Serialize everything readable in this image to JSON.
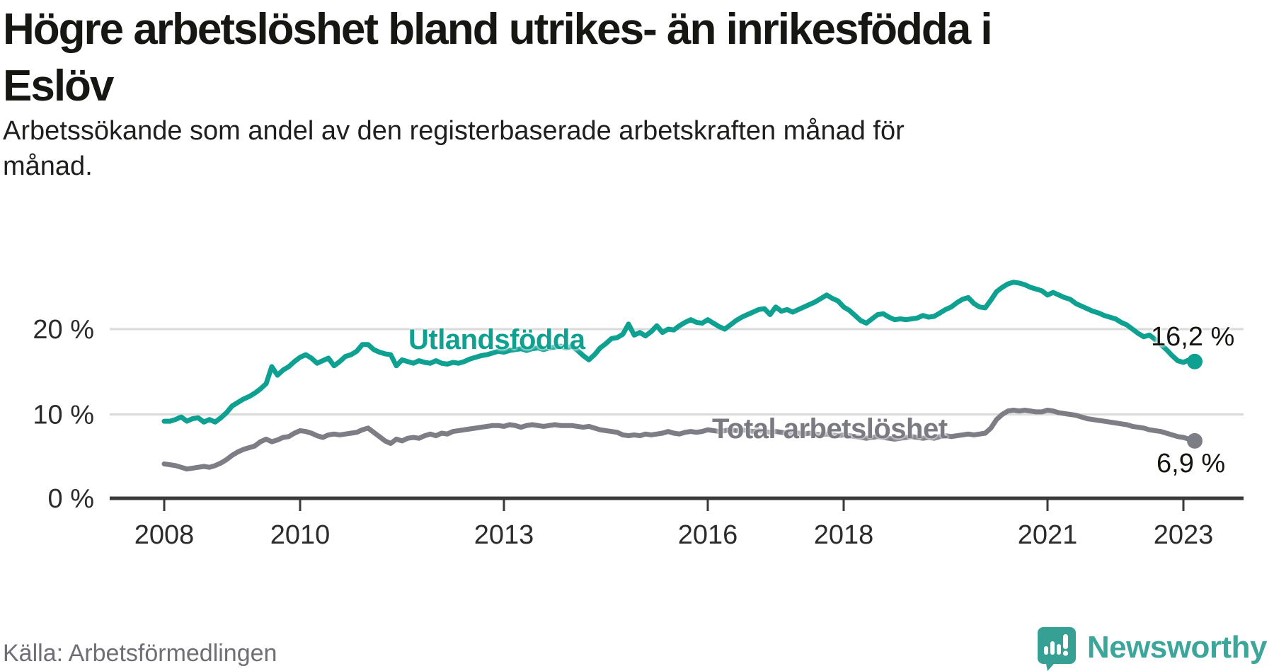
{
  "title": {
    "line1": "Högre arbetslöshet bland utrikes- än inrikesfödda i",
    "line2": "Eslöv"
  },
  "subtitle": {
    "line1": "Arbetssökande som andel av den registerbaserade arbetskraften månad för",
    "line2": "månad."
  },
  "source": "Källa: Arbetsförmedlingen",
  "brand": {
    "name": "Newsworthy"
  },
  "colors": {
    "teal": "#0ea192",
    "gray": "#7d7d85",
    "grid": "#dadada",
    "axis": "#3a3a3a",
    "tick_text": "#2b2b2b",
    "title_text": "#161613",
    "source_text": "#6e6e76",
    "brand_teal": "#3ca69b",
    "brand_bubble": "#35a093"
  },
  "chart_data": {
    "type": "line",
    "title": "Högre arbetslöshet bland utrikes- än inrikesfödda i Eslöv",
    "subtitle": "Arbetssökande som andel av den registerbaserade arbetskraften månad för månad.",
    "xlabel": "",
    "ylabel": "",
    "x_unit": "month",
    "x_start_year": 2008,
    "x_end": "2023-03",
    "ylim": [
      0,
      27
    ],
    "grid": "horizontal",
    "legend_position": "inline-labels",
    "x_ticks": [
      {
        "year": 2008,
        "label": "2008"
      },
      {
        "year": 2010,
        "label": "2010"
      },
      {
        "year": 2013,
        "label": "2013"
      },
      {
        "year": 2016,
        "label": "2016"
      },
      {
        "year": 2018,
        "label": "2018"
      },
      {
        "year": 2021,
        "label": "2021"
      },
      {
        "year": 2023,
        "label": "2023"
      }
    ],
    "y_ticks": [
      {
        "value": 0,
        "label": "0 %"
      },
      {
        "value": 10,
        "label": "10 %"
      },
      {
        "value": 20,
        "label": "20 %"
      }
    ],
    "series": [
      {
        "name": "Total arbetslöshet",
        "color": "#7d7d85",
        "end_label": "6,9 %",
        "end_value": 6.9,
        "values": [
          4.2,
          4.1,
          4.0,
          3.8,
          3.6,
          3.7,
          3.8,
          3.9,
          3.8,
          4.0,
          4.3,
          4.7,
          5.2,
          5.6,
          5.9,
          6.1,
          6.3,
          6.8,
          7.1,
          6.8,
          7.0,
          7.3,
          7.4,
          7.8,
          8.1,
          8.0,
          7.8,
          7.5,
          7.3,
          7.6,
          7.7,
          7.6,
          7.7,
          7.8,
          7.9,
          8.2,
          8.4,
          7.9,
          7.4,
          6.9,
          6.6,
          7.1,
          6.9,
          7.2,
          7.3,
          7.2,
          7.5,
          7.7,
          7.5,
          7.8,
          7.7,
          8.0,
          8.1,
          8.2,
          8.3,
          8.4,
          8.5,
          8.6,
          8.7,
          8.7,
          8.6,
          8.8,
          8.7,
          8.5,
          8.7,
          8.8,
          8.7,
          8.6,
          8.7,
          8.8,
          8.7,
          8.7,
          8.7,
          8.6,
          8.5,
          8.6,
          8.4,
          8.2,
          8.1,
          8.0,
          7.9,
          7.6,
          7.5,
          7.6,
          7.5,
          7.7,
          7.6,
          7.7,
          7.8,
          8.0,
          7.8,
          7.7,
          7.9,
          8.0,
          7.9,
          8.0,
          8.2,
          8.1,
          8.0,
          8.1,
          8.2,
          8.1,
          8.2,
          8.1,
          8.0,
          8.1,
          8.0,
          7.9,
          8.0,
          7.9,
          7.8,
          7.9,
          7.8,
          7.7,
          7.8,
          7.7,
          7.6,
          7.7,
          7.6,
          7.5,
          7.6,
          7.5,
          7.4,
          7.3,
          7.2,
          7.3,
          7.4,
          7.3,
          7.2,
          7.1,
          7.2,
          7.3,
          7.4,
          7.3,
          7.2,
          7.3,
          7.2,
          7.4,
          7.5,
          7.4,
          7.5,
          7.6,
          7.7,
          7.6,
          7.7,
          7.8,
          8.4,
          9.4,
          10.0,
          10.4,
          10.5,
          10.4,
          10.5,
          10.4,
          10.3,
          10.3,
          10.5,
          10.4,
          10.2,
          10.1,
          10.0,
          9.9,
          9.7,
          9.5,
          9.4,
          9.3,
          9.2,
          9.1,
          9.0,
          8.9,
          8.8,
          8.6,
          8.5,
          8.4,
          8.2,
          8.1,
          8.0,
          7.8,
          7.6,
          7.4,
          7.3,
          7.1,
          6.9
        ]
      },
      {
        "name": "Utlandsfödda",
        "color": "#0ea192",
        "end_label": "16,2 %",
        "end_value": 16.2,
        "values": [
          9.2,
          9.2,
          9.4,
          9.7,
          9.2,
          9.5,
          9.6,
          9.1,
          9.4,
          9.1,
          9.6,
          10.2,
          11.0,
          11.4,
          11.8,
          12.1,
          12.5,
          13.0,
          13.6,
          15.6,
          14.6,
          15.2,
          15.6,
          16.2,
          16.7,
          17.0,
          16.6,
          16.0,
          16.3,
          16.6,
          15.7,
          16.2,
          16.8,
          17.0,
          17.4,
          18.2,
          18.2,
          17.6,
          17.3,
          17.1,
          17.0,
          15.7,
          16.4,
          16.2,
          16.0,
          16.3,
          16.1,
          16.0,
          16.3,
          16.0,
          15.9,
          16.1,
          16.0,
          16.2,
          16.5,
          16.7,
          16.9,
          17.0,
          17.2,
          17.4,
          17.3,
          17.5,
          17.6,
          17.7,
          17.5,
          17.7,
          17.8,
          17.6,
          17.8,
          17.9,
          18.0,
          17.8,
          18.0,
          17.5,
          16.9,
          16.4,
          17.0,
          17.8,
          18.3,
          18.9,
          19.0,
          19.4,
          20.6,
          19.3,
          19.6,
          19.2,
          19.7,
          20.4,
          19.6,
          20.0,
          19.9,
          20.4,
          20.8,
          21.1,
          20.8,
          20.7,
          21.1,
          20.7,
          20.3,
          20.0,
          20.5,
          21.0,
          21.4,
          21.7,
          22.0,
          22.3,
          22.4,
          21.7,
          22.6,
          22.1,
          22.3,
          22.0,
          22.3,
          22.6,
          22.9,
          23.2,
          23.6,
          24.0,
          23.6,
          23.3,
          22.6,
          22.2,
          21.6,
          21.0,
          20.7,
          21.2,
          21.7,
          21.8,
          21.4,
          21.1,
          21.2,
          21.1,
          21.2,
          21.3,
          21.6,
          21.4,
          21.5,
          21.9,
          22.3,
          22.6,
          23.1,
          23.5,
          23.7,
          23.0,
          22.6,
          22.5,
          23.4,
          24.4,
          24.9,
          25.3,
          25.5,
          25.4,
          25.2,
          24.9,
          24.7,
          24.5,
          24.0,
          24.3,
          24.0,
          23.7,
          23.5,
          23.0,
          22.7,
          22.4,
          22.1,
          21.9,
          21.6,
          21.4,
          21.2,
          20.8,
          20.5,
          20.0,
          19.5,
          19.1,
          19.3,
          18.8,
          18.2,
          17.6,
          16.9,
          16.3,
          16.1,
          16.4,
          16.2
        ]
      }
    ]
  }
}
